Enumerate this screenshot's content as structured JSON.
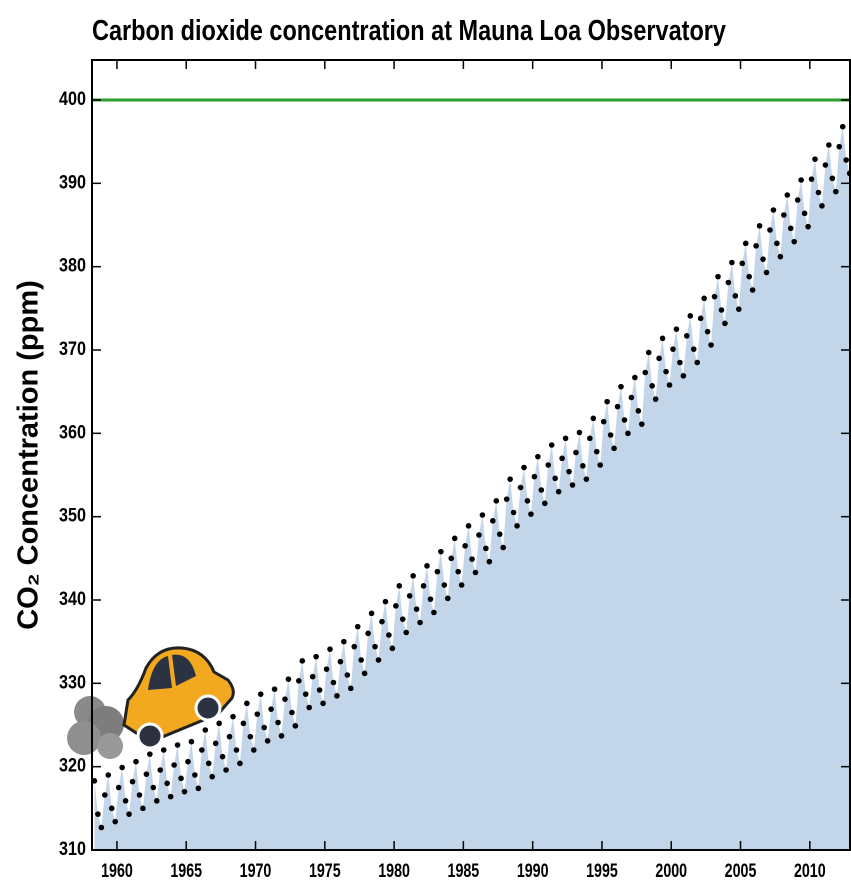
{
  "chart_data": {
    "type": "scatter",
    "title": "Carbon dioxide concentration at Mauna Loa Observatory",
    "y_label": "CO₂ Concentration (ppm)",
    "xlim": [
      1958.2,
      2012.9
    ],
    "ylim": [
      310,
      404.8
    ],
    "xticks": [
      1960,
      1965,
      1970,
      1975,
      1980,
      1985,
      1990,
      1995,
      2000,
      2005,
      2010
    ],
    "yticks": [
      310,
      320,
      330,
      340,
      350,
      360,
      370,
      380,
      390,
      400
    ],
    "reference_line": 400,
    "reference_color": "#2ca02c",
    "fill_color": "#c3d5e9",
    "series": [
      {
        "color": "#000000",
        "x": [
          1958.375,
          1958.625,
          1958.875,
          1959.125,
          1959.375,
          1959.625,
          1959.875,
          1960.125,
          1960.375,
          1960.625,
          1960.875,
          1961.125,
          1961.375,
          1961.625,
          1961.875,
          1962.125,
          1962.375,
          1962.625,
          1962.875,
          1963.125,
          1963.375,
          1963.625,
          1963.875,
          1964.125,
          1964.375,
          1964.625,
          1964.875,
          1965.125,
          1965.375,
          1965.625,
          1965.875,
          1966.125,
          1966.375,
          1966.625,
          1966.875,
          1967.125,
          1967.375,
          1967.625,
          1967.875,
          1968.125,
          1968.375,
          1968.625,
          1968.875,
          1969.125,
          1969.375,
          1969.625,
          1969.875,
          1970.125,
          1970.375,
          1970.625,
          1970.875,
          1971.125,
          1971.375,
          1971.625,
          1971.875,
          1972.125,
          1972.375,
          1972.625,
          1972.875,
          1973.125,
          1973.375,
          1973.625,
          1973.875,
          1974.125,
          1974.375,
          1974.625,
          1974.875,
          1975.125,
          1975.375,
          1975.625,
          1975.875,
          1976.125,
          1976.375,
          1976.625,
          1976.875,
          1977.125,
          1977.375,
          1977.625,
          1977.875,
          1978.125,
          1978.375,
          1978.625,
          1978.875,
          1979.125,
          1979.375,
          1979.625,
          1979.875,
          1980.125,
          1980.375,
          1980.625,
          1980.875,
          1981.125,
          1981.375,
          1981.625,
          1981.875,
          1982.125,
          1982.375,
          1982.625,
          1982.875,
          1983.125,
          1983.375,
          1983.625,
          1983.875,
          1984.125,
          1984.375,
          1984.625,
          1984.875,
          1985.125,
          1985.375,
          1985.625,
          1985.875,
          1986.125,
          1986.375,
          1986.625,
          1986.875,
          1987.125,
          1987.375,
          1987.625,
          1987.875,
          1988.125,
          1988.375,
          1988.625,
          1988.875,
          1989.125,
          1989.375,
          1989.625,
          1989.875,
          1990.125,
          1990.375,
          1990.625,
          1990.875,
          1991.125,
          1991.375,
          1991.625,
          1991.875,
          1992.125,
          1992.375,
          1992.625,
          1992.875,
          1993.125,
          1993.375,
          1993.625,
          1993.875,
          1994.125,
          1994.375,
          1994.625,
          1994.875,
          1995.125,
          1995.375,
          1995.625,
          1995.875,
          1996.125,
          1996.375,
          1996.625,
          1996.875,
          1997.125,
          1997.375,
          1997.625,
          1997.875,
          1998.125,
          1998.375,
          1998.625,
          1998.875,
          1999.125,
          1999.375,
          1999.625,
          1999.875,
          2000.125,
          2000.375,
          2000.625,
          2000.875,
          2001.125,
          2001.375,
          2001.625,
          2001.875,
          2002.125,
          2002.375,
          2002.625,
          2002.875,
          2003.125,
          2003.375,
          2003.625,
          2003.875,
          2004.125,
          2004.375,
          2004.625,
          2004.875,
          2005.125,
          2005.375,
          2005.625,
          2005.875,
          2006.125,
          2006.375,
          2006.625,
          2006.875,
          2007.125,
          2007.375,
          2007.625,
          2007.875,
          2008.125,
          2008.375,
          2008.625,
          2008.875,
          2009.125,
          2009.375,
          2009.625,
          2009.875,
          2010.125,
          2010.375,
          2010.625,
          2010.875,
          2011.125,
          2011.375,
          2011.625,
          2011.875,
          2012.125,
          2012.375,
          2012.625,
          2012.875
        ],
        "values": [
          318.3,
          314.3,
          312.7,
          316.6,
          319.0,
          315.0,
          313.4,
          317.5,
          319.9,
          315.9,
          314.3,
          318.2,
          320.6,
          316.6,
          315.0,
          319.1,
          321.5,
          317.5,
          315.9,
          319.6,
          322.0,
          318.0,
          316.4,
          320.2,
          322.6,
          318.6,
          317.0,
          320.6,
          323.0,
          319.0,
          317.4,
          322.0,
          324.4,
          320.4,
          318.8,
          322.8,
          325.2,
          321.2,
          319.6,
          323.6,
          326.0,
          322.0,
          320.4,
          325.2,
          327.6,
          323.6,
          322.0,
          326.3,
          328.7,
          324.7,
          323.1,
          326.9,
          329.3,
          325.3,
          323.7,
          328.1,
          330.5,
          326.5,
          324.9,
          330.3,
          332.7,
          328.7,
          327.1,
          330.8,
          333.2,
          329.2,
          327.6,
          331.7,
          334.1,
          330.1,
          328.5,
          332.6,
          335.0,
          331.0,
          329.4,
          334.4,
          336.8,
          332.8,
          331.2,
          336.0,
          338.4,
          334.4,
          332.8,
          337.4,
          339.8,
          335.8,
          334.2,
          339.3,
          341.7,
          337.7,
          336.1,
          340.5,
          342.9,
          338.9,
          337.3,
          341.7,
          344.1,
          340.1,
          338.5,
          343.4,
          345.8,
          341.8,
          340.2,
          345.0,
          347.4,
          343.4,
          341.8,
          346.5,
          348.9,
          344.9,
          343.3,
          347.8,
          350.2,
          346.2,
          344.6,
          349.5,
          351.9,
          347.9,
          346.3,
          352.1,
          354.5,
          350.5,
          348.9,
          353.5,
          355.9,
          351.9,
          350.3,
          354.8,
          357.2,
          353.2,
          351.6,
          356.2,
          358.6,
          354.6,
          353.0,
          357.0,
          359.4,
          355.4,
          353.8,
          357.7,
          360.1,
          356.1,
          354.5,
          359.4,
          361.8,
          357.8,
          356.2,
          361.4,
          363.8,
          359.8,
          358.2,
          363.2,
          365.6,
          361.6,
          360.0,
          364.3,
          366.7,
          362.7,
          361.1,
          367.3,
          369.7,
          365.7,
          364.1,
          369.0,
          371.4,
          367.4,
          365.8,
          370.1,
          372.5,
          368.5,
          366.9,
          371.7,
          374.1,
          370.1,
          368.5,
          373.8,
          376.2,
          372.2,
          370.6,
          376.4,
          378.8,
          374.8,
          373.2,
          378.1,
          380.5,
          376.5,
          374.9,
          380.4,
          382.8,
          378.8,
          377.2,
          382.5,
          384.9,
          380.9,
          379.3,
          384.4,
          386.8,
          382.8,
          381.2,
          386.2,
          388.6,
          384.6,
          383.0,
          388.0,
          390.4,
          386.4,
          384.8,
          390.5,
          392.9,
          388.9,
          387.3,
          392.2,
          394.6,
          390.6,
          389.0,
          394.4,
          396.8,
          392.8,
          391.2
        ]
      }
    ]
  }
}
